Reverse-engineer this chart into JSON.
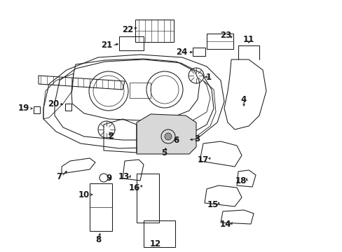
{
  "bg_color": "#ffffff",
  "line_color": "#1a1a1a",
  "text_color": "#1a1a1a",
  "fig_width": 4.89,
  "fig_height": 3.6,
  "dpi": 100,
  "font_size": 8.5,
  "lw": 0.75
}
